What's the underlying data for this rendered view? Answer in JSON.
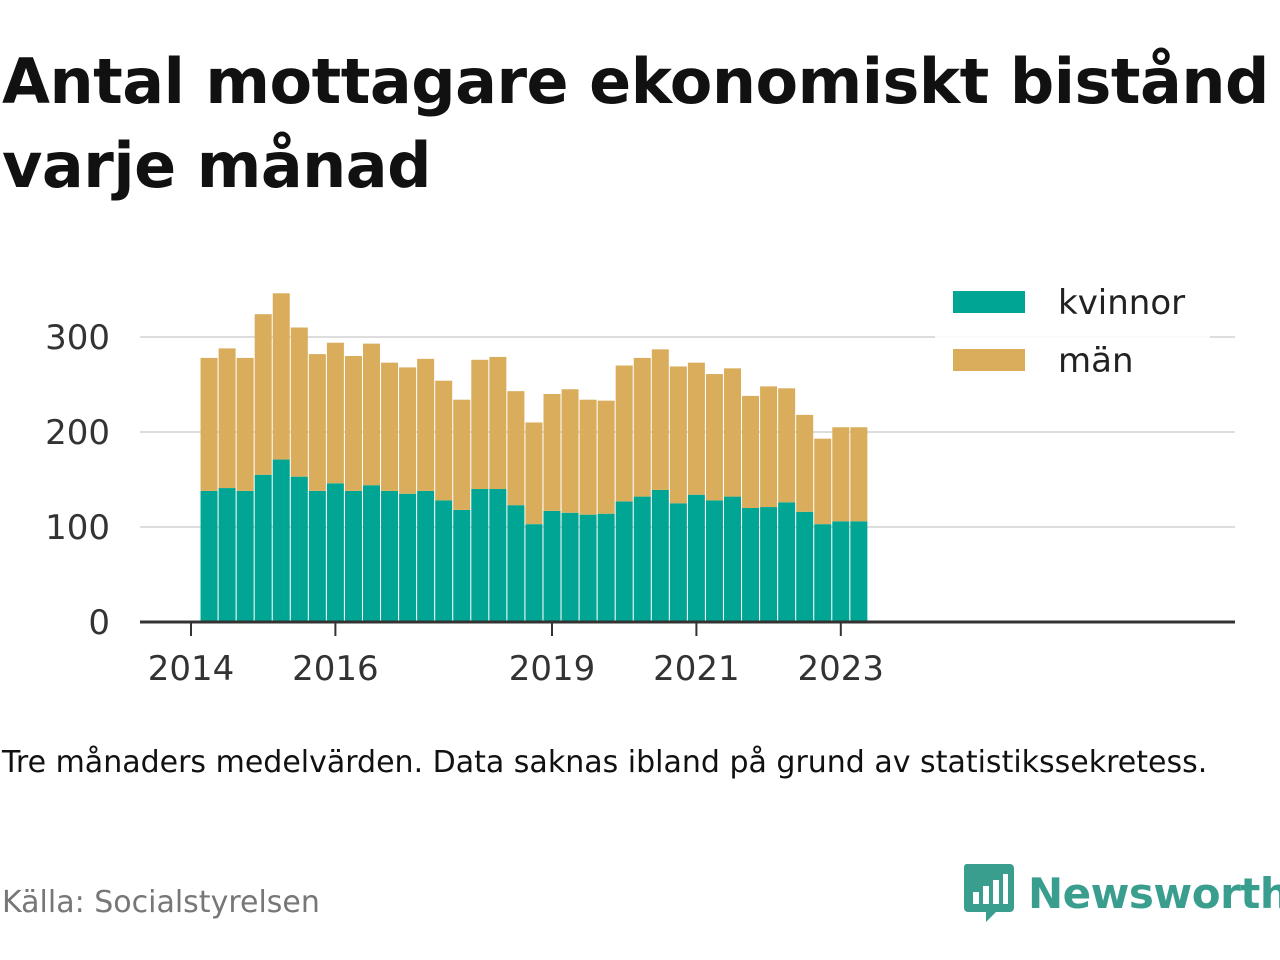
{
  "title": "Antal mottagare ekonomiskt bistånd varje månad",
  "note": "Tre månaders medelvärden. Data saknas ibland på grund av statistikssekretess.",
  "source": "Källa: Socialstyrelsen",
  "brand": {
    "name": "Newsworthy",
    "icon": "newsworthy-logo-icon",
    "color": "#3a9e8f"
  },
  "colors": {
    "kvinnor": "#00a593",
    "man": "#d9ad5b",
    "grid": "#dddddd",
    "axis": "#333333"
  },
  "chart_data": {
    "type": "bar",
    "stacked": true,
    "legend_position": "top-right",
    "grid": true,
    "ylim": [
      0,
      360
    ],
    "y_ticks": [
      0,
      100,
      200,
      300
    ],
    "x_ticks": [
      "2014",
      "2016",
      "2019",
      "2021",
      "2023"
    ],
    "x": [
      "2014-04",
      "2014-07",
      "2014-10",
      "2015-01",
      "2015-04",
      "2015-07",
      "2015-10",
      "2016-01",
      "2016-04",
      "2016-07",
      "2016-10",
      "2017-01",
      "2017-04",
      "2017-07",
      "2017-10",
      "2018-01",
      "2018-04",
      "2018-07",
      "2018-10",
      "2019-01",
      "2019-04",
      "2019-07",
      "2019-10",
      "2020-01",
      "2020-04",
      "2020-07",
      "2020-10",
      "2021-01",
      "2021-04",
      "2021-07",
      "2021-10",
      "2022-01",
      "2022-04",
      "2022-07",
      "2022-10",
      "2023-01",
      "2023-04"
    ],
    "series": [
      {
        "name": "kvinnor",
        "color": "#00a593",
        "values": [
          138,
          141,
          138,
          155,
          171,
          153,
          138,
          146,
          138,
          144,
          138,
          135,
          138,
          128,
          118,
          140,
          140,
          123,
          103,
          117,
          115,
          113,
          114,
          127,
          132,
          139,
          125,
          134,
          128,
          132,
          120,
          121,
          126,
          116,
          103,
          106,
          106
        ]
      },
      {
        "name": "män",
        "color": "#d9ad5b",
        "values": [
          140,
          147,
          140,
          169,
          175,
          157,
          144,
          148,
          142,
          149,
          135,
          133,
          139,
          126,
          116,
          136,
          139,
          120,
          107,
          123,
          130,
          121,
          119,
          143,
          146,
          148,
          144,
          139,
          133,
          135,
          118,
          127,
          120,
          102,
          90,
          99,
          99
        ]
      }
    ]
  }
}
